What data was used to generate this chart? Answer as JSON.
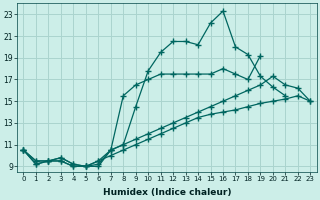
{
  "xlabel": "Humidex (Indice chaleur)",
  "background_color": "#cceee8",
  "grid_color": "#aad4ce",
  "line_color": "#006660",
  "xlim": [
    -0.5,
    23.5
  ],
  "ylim": [
    8.5,
    24.0
  ],
  "yticks": [
    9,
    11,
    13,
    15,
    17,
    19,
    21,
    23
  ],
  "xticks": [
    0,
    1,
    2,
    3,
    4,
    5,
    6,
    7,
    8,
    9,
    10,
    11,
    12,
    13,
    14,
    15,
    16,
    17,
    18,
    19,
    20,
    21,
    22,
    23
  ],
  "line1_x": [
    0,
    1,
    2,
    3,
    4,
    5,
    6,
    7,
    8,
    9,
    10,
    11,
    12,
    13,
    14,
    15,
    16,
    17,
    18,
    19,
    20,
    21
  ],
  "line1_y": [
    10.5,
    9.2,
    9.5,
    9.8,
    9.2,
    9.0,
    9.0,
    10.5,
    11.0,
    14.5,
    17.8,
    19.5,
    20.5,
    20.5,
    20.2,
    22.2,
    23.3,
    20.0,
    19.3,
    17.3,
    16.3,
    15.5
  ],
  "line2_x": [
    0,
    1,
    2,
    3,
    4,
    5,
    6,
    7,
    8,
    9,
    10,
    11,
    12,
    13,
    14,
    15,
    16,
    17,
    18,
    19
  ],
  "line2_y": [
    10.5,
    9.2,
    9.5,
    9.8,
    9.2,
    9.0,
    9.2,
    10.5,
    15.5,
    16.5,
    17.0,
    17.5,
    17.5,
    17.5,
    17.5,
    17.5,
    18.0,
    17.5,
    17.0,
    19.2
  ],
  "line3_x": [
    0,
    1,
    2,
    3,
    4,
    5,
    6,
    7,
    8,
    9,
    10,
    11,
    12,
    13,
    14,
    15,
    16,
    17,
    18,
    19,
    20,
    21,
    22,
    23
  ],
  "line3_y": [
    10.5,
    9.5,
    9.5,
    9.5,
    9.0,
    9.0,
    9.5,
    10.5,
    11.0,
    11.5,
    12.0,
    12.5,
    13.0,
    13.5,
    14.0,
    14.5,
    15.0,
    15.5,
    16.0,
    16.5,
    17.3,
    16.5,
    16.2,
    15.0
  ],
  "line4_x": [
    0,
    1,
    2,
    3,
    4,
    5,
    6,
    7,
    8,
    9,
    10,
    11,
    12,
    13,
    14,
    15,
    16,
    17,
    18,
    19,
    20,
    21,
    22,
    23
  ],
  "line4_y": [
    10.5,
    9.5,
    9.5,
    9.5,
    9.0,
    9.0,
    9.5,
    10.0,
    10.5,
    11.0,
    11.5,
    12.0,
    12.5,
    13.0,
    13.5,
    13.8,
    14.0,
    14.2,
    14.5,
    14.8,
    15.0,
    15.2,
    15.5,
    15.0
  ]
}
